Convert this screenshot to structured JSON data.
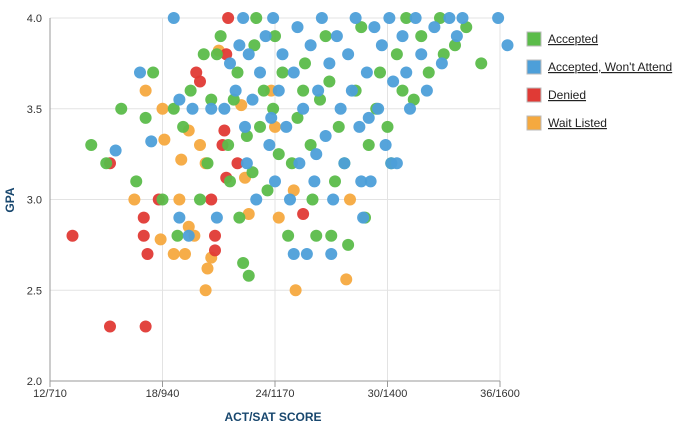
{
  "chart_data": {
    "type": "scatter",
    "xlabel": "ACT/SAT SCORE",
    "ylabel": "GPA",
    "x_ticks": [
      {
        "value": 12,
        "label": "12/710"
      },
      {
        "value": 18,
        "label": "18/940"
      },
      {
        "value": 24,
        "label": "24/1170"
      },
      {
        "value": 30,
        "label": "30/1400"
      },
      {
        "value": 36,
        "label": "36/1600"
      }
    ],
    "y_ticks": [
      {
        "value": 2.0,
        "label": "2.0"
      },
      {
        "value": 2.5,
        "label": "2.5"
      },
      {
        "value": 3.0,
        "label": "3.0"
      },
      {
        "value": 3.5,
        "label": "3.5"
      },
      {
        "value": 4.0,
        "label": "4.0"
      }
    ],
    "xlim": [
      12,
      36
    ],
    "ylim": [
      2.0,
      4.0
    ],
    "grid": true,
    "legend_position": "right",
    "series": [
      {
        "name": "Wait Listed",
        "color": "#f5a93f",
        "points": [
          [
            17.1,
            3.6
          ],
          [
            18.0,
            3.5
          ],
          [
            18.1,
            3.33
          ],
          [
            19.0,
            3.22
          ],
          [
            19.4,
            3.38
          ],
          [
            20.0,
            3.3
          ],
          [
            20.3,
            3.2
          ],
          [
            18.6,
            2.7
          ],
          [
            18.9,
            3.0
          ],
          [
            19.2,
            2.7
          ],
          [
            19.4,
            2.85
          ],
          [
            19.7,
            2.8
          ],
          [
            20.4,
            2.62
          ],
          [
            20.6,
            2.68
          ],
          [
            20.3,
            2.5
          ],
          [
            22.2,
            3.52
          ],
          [
            22.4,
            3.12
          ],
          [
            24.0,
            3.4
          ],
          [
            24.2,
            2.9
          ],
          [
            25.0,
            3.05
          ],
          [
            25.1,
            2.5
          ],
          [
            27.8,
            2.56
          ],
          [
            28.0,
            3.0
          ],
          [
            16.5,
            3.0
          ],
          [
            17.9,
            2.78
          ],
          [
            21.0,
            3.82
          ],
          [
            22.6,
            2.92
          ],
          [
            23.8,
            3.6
          ]
        ]
      },
      {
        "name": "Denied",
        "color": "#e03a35",
        "points": [
          [
            13.2,
            2.8
          ],
          [
            15.2,
            2.3
          ],
          [
            17.1,
            2.3
          ],
          [
            15.2,
            3.2
          ],
          [
            17.0,
            2.8
          ],
          [
            17.2,
            2.7
          ],
          [
            17.0,
            2.9
          ],
          [
            17.8,
            3.0
          ],
          [
            19.8,
            3.7
          ],
          [
            20.0,
            3.65
          ],
          [
            20.8,
            2.8
          ],
          [
            20.8,
            2.72
          ],
          [
            21.4,
            3.12
          ],
          [
            21.3,
            3.38
          ],
          [
            21.4,
            3.8
          ],
          [
            21.5,
            4.0
          ],
          [
            21.2,
            3.3
          ],
          [
            25.5,
            2.92
          ],
          [
            20.6,
            3.0
          ],
          [
            22.0,
            3.2
          ]
        ]
      },
      {
        "name": "Accepted",
        "color": "#5bbc4a",
        "points": [
          [
            14.2,
            3.3
          ],
          [
            15.0,
            3.2
          ],
          [
            15.8,
            3.5
          ],
          [
            16.6,
            3.1
          ],
          [
            17.1,
            3.45
          ],
          [
            17.5,
            3.7
          ],
          [
            18.0,
            3.0
          ],
          [
            18.8,
            2.8
          ],
          [
            18.6,
            3.5
          ],
          [
            19.1,
            3.4
          ],
          [
            19.5,
            3.6
          ],
          [
            20.0,
            3.0
          ],
          [
            20.2,
            3.8
          ],
          [
            20.6,
            3.55
          ],
          [
            20.9,
            3.8
          ],
          [
            21.1,
            3.9
          ],
          [
            21.5,
            3.3
          ],
          [
            21.6,
            3.1
          ],
          [
            22.0,
            3.7
          ],
          [
            22.1,
            2.9
          ],
          [
            22.3,
            2.65
          ],
          [
            22.6,
            2.58
          ],
          [
            22.9,
            3.85
          ],
          [
            23.2,
            3.4
          ],
          [
            23.4,
            3.6
          ],
          [
            23.0,
            4.0
          ],
          [
            24.0,
            3.9
          ],
          [
            24.4,
            3.7
          ],
          [
            24.9,
            3.2
          ],
          [
            25.2,
            3.45
          ],
          [
            25.6,
            3.75
          ],
          [
            25.9,
            3.3
          ],
          [
            26.2,
            2.8
          ],
          [
            26.4,
            3.55
          ],
          [
            26.7,
            3.9
          ],
          [
            27.0,
            2.8
          ],
          [
            27.4,
            3.4
          ],
          [
            27.7,
            3.2
          ],
          [
            27.9,
            2.75
          ],
          [
            28.3,
            3.6
          ],
          [
            28.6,
            3.95
          ],
          [
            29.0,
            3.3
          ],
          [
            29.6,
            3.7
          ],
          [
            30.0,
            3.4
          ],
          [
            30.2,
            3.2
          ],
          [
            30.5,
            3.8
          ],
          [
            31.0,
            4.0
          ],
          [
            31.4,
            3.55
          ],
          [
            31.8,
            3.9
          ],
          [
            32.2,
            3.7
          ],
          [
            32.8,
            4.0
          ],
          [
            33.6,
            3.85
          ],
          [
            34.2,
            3.95
          ],
          [
            35.0,
            3.75
          ],
          [
            22.8,
            3.15
          ],
          [
            23.6,
            3.05
          ],
          [
            24.7,
            2.8
          ],
          [
            26.0,
            3.0
          ],
          [
            28.8,
            2.9
          ],
          [
            25.5,
            3.6
          ],
          [
            26.9,
            3.65
          ],
          [
            29.4,
            3.5
          ],
          [
            21.8,
            3.55
          ],
          [
            20.4,
            3.2
          ],
          [
            22.5,
            3.35
          ],
          [
            24.2,
            3.25
          ],
          [
            27.2,
            3.1
          ],
          [
            30.8,
            3.6
          ],
          [
            33.0,
            3.8
          ],
          [
            23.9,
            3.5
          ]
        ]
      },
      {
        "name": "Accepted, Won't Attend",
        "color": "#4d9fd9",
        "points": [
          [
            15.5,
            3.27
          ],
          [
            16.8,
            3.7
          ],
          [
            17.4,
            3.32
          ],
          [
            18.6,
            4.0
          ],
          [
            18.9,
            3.55
          ],
          [
            18.9,
            2.9
          ],
          [
            19.6,
            3.5
          ],
          [
            19.4,
            2.8
          ],
          [
            20.6,
            3.5
          ],
          [
            20.9,
            2.9
          ],
          [
            21.3,
            3.5
          ],
          [
            21.6,
            3.75
          ],
          [
            21.9,
            3.6
          ],
          [
            22.1,
            3.85
          ],
          [
            22.3,
            4.0
          ],
          [
            22.4,
            3.4
          ],
          [
            22.5,
            3.2
          ],
          [
            22.8,
            3.55
          ],
          [
            23.0,
            3.0
          ],
          [
            23.2,
            3.7
          ],
          [
            23.5,
            3.9
          ],
          [
            23.7,
            3.3
          ],
          [
            23.9,
            4.0
          ],
          [
            24.0,
            3.1
          ],
          [
            24.2,
            3.6
          ],
          [
            24.4,
            3.8
          ],
          [
            24.6,
            3.4
          ],
          [
            24.8,
            3.0
          ],
          [
            25.0,
            3.7
          ],
          [
            25.2,
            3.95
          ],
          [
            25.3,
            3.2
          ],
          [
            25.5,
            3.5
          ],
          [
            25.7,
            2.7
          ],
          [
            25.9,
            3.85
          ],
          [
            26.1,
            3.1
          ],
          [
            26.3,
            3.6
          ],
          [
            26.5,
            4.0
          ],
          [
            26.7,
            3.35
          ],
          [
            26.9,
            3.75
          ],
          [
            27.1,
            3.0
          ],
          [
            27.3,
            3.9
          ],
          [
            27.5,
            3.5
          ],
          [
            27.7,
            3.2
          ],
          [
            27.9,
            3.8
          ],
          [
            28.1,
            3.6
          ],
          [
            28.3,
            4.0
          ],
          [
            28.5,
            3.4
          ],
          [
            28.7,
            2.9
          ],
          [
            28.9,
            3.7
          ],
          [
            29.1,
            3.1
          ],
          [
            29.3,
            3.95
          ],
          [
            29.5,
            3.5
          ],
          [
            29.7,
            3.85
          ],
          [
            29.9,
            3.3
          ],
          [
            30.1,
            4.0
          ],
          [
            30.3,
            3.65
          ],
          [
            30.5,
            3.2
          ],
          [
            30.8,
            3.9
          ],
          [
            31.2,
            3.5
          ],
          [
            31.5,
            4.0
          ],
          [
            31.8,
            3.8
          ],
          [
            32.1,
            3.6
          ],
          [
            32.5,
            3.95
          ],
          [
            32.9,
            3.75
          ],
          [
            33.3,
            4.0
          ],
          [
            33.7,
            3.9
          ],
          [
            34.0,
            4.0
          ],
          [
            35.9,
            4.0
          ],
          [
            36.4,
            3.85
          ],
          [
            30.2,
            3.2
          ],
          [
            28.6,
            3.1
          ],
          [
            27.0,
            2.7
          ],
          [
            25.0,
            2.7
          ],
          [
            22.6,
            3.8
          ],
          [
            23.8,
            3.45
          ],
          [
            26.2,
            3.25
          ],
          [
            29.0,
            3.45
          ],
          [
            31.0,
            3.7
          ]
        ]
      }
    ]
  }
}
